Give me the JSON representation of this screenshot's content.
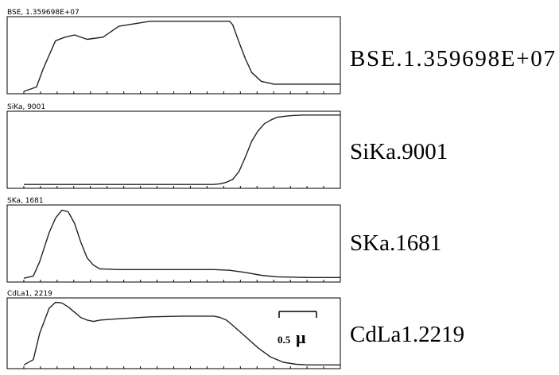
{
  "chart_data": [
    {
      "type": "line",
      "header": "BSE, 1.359698E+07",
      "label": "BSE.1.359698E+07",
      "x": [
        0,
        4,
        6,
        8,
        10,
        13,
        16,
        20,
        25,
        30,
        40,
        50,
        60,
        65,
        66,
        68,
        70,
        72,
        75,
        79,
        83,
        88,
        95,
        100
      ],
      "y": [
        0,
        6,
        30,
        50,
        70,
        75,
        78,
        72,
        75,
        90,
        97,
        97,
        97,
        97,
        92,
        68,
        45,
        26,
        14,
        10,
        10,
        10,
        10,
        10
      ],
      "ylim": [
        0,
        100
      ]
    },
    {
      "type": "line",
      "header": "SiKa, 9001",
      "label": "SiKa.9001",
      "x": [
        0,
        10,
        20,
        30,
        40,
        50,
        60,
        62,
        64,
        66,
        68,
        70,
        72,
        74,
        76,
        78,
        80,
        84,
        88,
        92,
        96,
        100
      ],
      "y": [
        2,
        2,
        2,
        2,
        2,
        2,
        2,
        3,
        5,
        9,
        20,
        40,
        62,
        76,
        86,
        91,
        95,
        97,
        98,
        98,
        98,
        98
      ],
      "ylim": [
        0,
        100
      ]
    },
    {
      "type": "line",
      "header": "SKa, 1681",
      "label": "SKa.1681",
      "x": [
        0,
        3,
        5,
        8,
        10,
        12,
        14,
        16,
        18,
        20,
        22,
        24,
        30,
        40,
        50,
        60,
        65,
        70,
        75,
        80,
        90,
        100
      ],
      "y": [
        2,
        5,
        25,
        65,
        85,
        96,
        94,
        78,
        52,
        30,
        20,
        15,
        14,
        14,
        14,
        14,
        13,
        10,
        6,
        4,
        3,
        3
      ],
      "ylim": [
        0,
        100
      ]
    },
    {
      "type": "line",
      "header": "CdLa1, 2219",
      "label": "CdLa1.2219",
      "x": [
        0,
        3,
        5,
        8,
        10,
        12,
        14,
        16,
        18,
        20,
        22,
        24,
        30,
        40,
        50,
        55,
        60,
        62,
        64,
        66,
        70,
        74,
        78,
        82,
        86,
        90,
        95,
        100
      ],
      "y": [
        2,
        10,
        50,
        88,
        97,
        96,
        90,
        82,
        74,
        70,
        68,
        70,
        72,
        75,
        76,
        76,
        76,
        74,
        70,
        62,
        45,
        28,
        14,
        6,
        3,
        2,
        2,
        2
      ],
      "ylim": [
        0,
        100
      ]
    }
  ],
  "scale_bar": {
    "number": "0.5",
    "unit": "μ"
  }
}
